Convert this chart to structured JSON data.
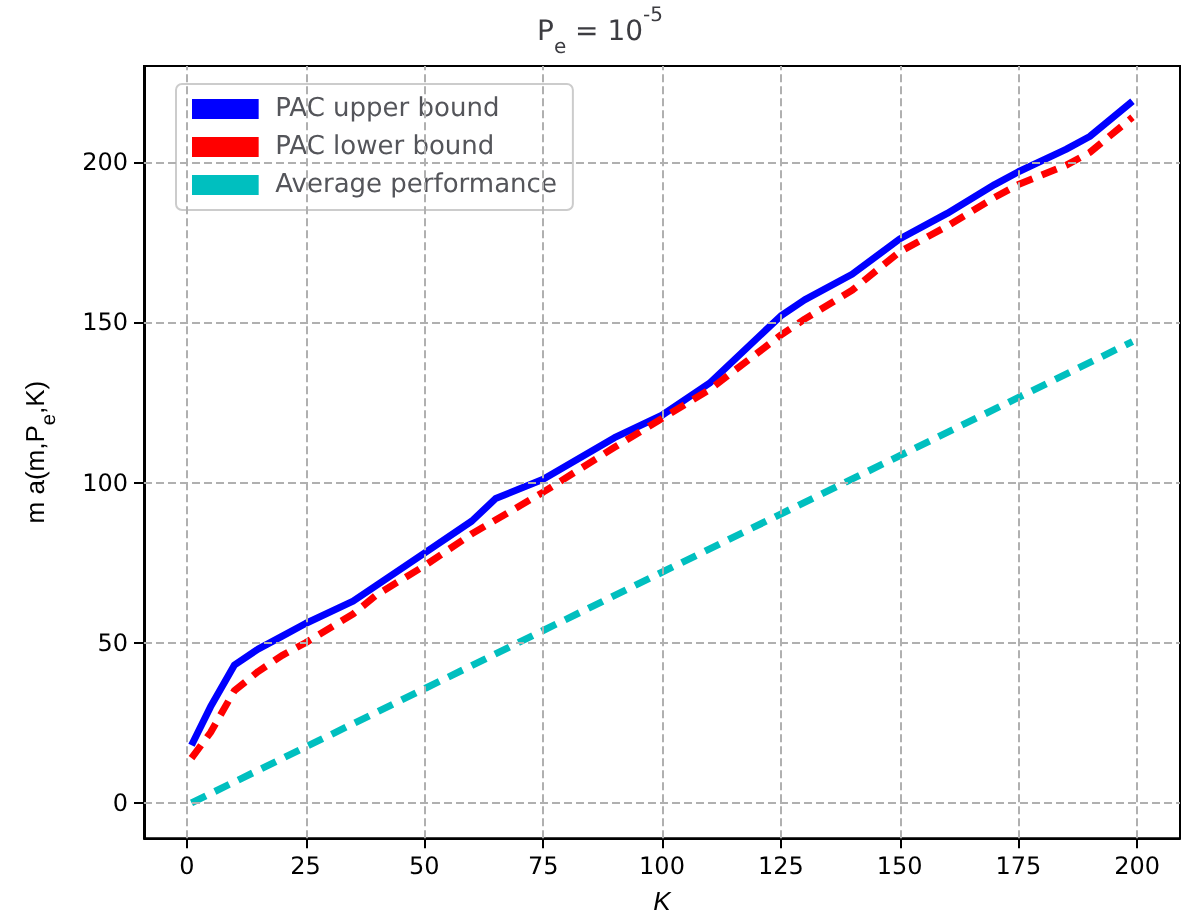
{
  "chart_data": {
    "type": "line",
    "title": "P$_{e}$ = 10$^{-5}$",
    "xlabel": "K",
    "ylabel": "m a(m,P$_{e}$,K)",
    "xlim": [
      -9,
      209
    ],
    "xticks": [
      0,
      25,
      50,
      75,
      100,
      125,
      150,
      175,
      200
    ],
    "ylim": [
      -11,
      230
    ],
    "yticks": [
      0,
      50,
      100,
      150,
      200
    ],
    "grid": true,
    "legend": "top left",
    "marker": "none",
    "series": [
      {
        "name": "PAC upper bound",
        "color": "#0000ff",
        "line_style": "solid",
        "x": [
          1,
          5,
          10,
          15,
          20,
          25,
          35,
          40,
          45,
          50,
          60,
          65,
          75,
          90,
          100,
          110,
          125,
          130,
          140,
          150,
          160,
          170,
          175,
          185,
          190,
          199
        ],
        "values": [
          18,
          30,
          43,
          48,
          52,
          56,
          63,
          68,
          73,
          78,
          88,
          95,
          101,
          114,
          121,
          131,
          152,
          157,
          165,
          176,
          184,
          193,
          197,
          204,
          208,
          219
        ]
      },
      {
        "name": "PAC lower bound",
        "color": "#ff0000",
        "line_style": "dashed",
        "x": [
          1,
          5,
          10,
          15,
          20,
          25,
          35,
          40,
          50,
          60,
          75,
          90,
          100,
          110,
          125,
          130,
          140,
          150,
          160,
          170,
          175,
          185,
          190,
          199
        ],
        "values": [
          14,
          22,
          35,
          41,
          46,
          50,
          59,
          65,
          74,
          84,
          97,
          111,
          120,
          129,
          146,
          151,
          160,
          172,
          180,
          189,
          193,
          199,
          203,
          214
        ]
      },
      {
        "name": "Average performance",
        "color": "#00bfbf",
        "line_style": "dashed",
        "x": [
          1,
          199
        ],
        "values": [
          0,
          144
        ]
      }
    ]
  }
}
